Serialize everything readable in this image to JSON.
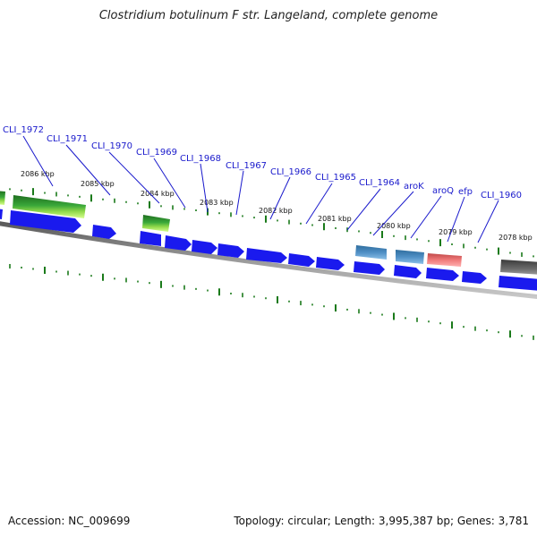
{
  "title": "Clostridium botulinum F str. Langeland, complete genome",
  "footer": {
    "accession": "Accession: NC_009699",
    "summary": "Topology: circular; Length: 3,995,387 bp; Genes: 3,781"
  },
  "colors": {
    "label": "#1a1acc",
    "cds": "#1a1aee",
    "rna_green": "#2a8a2a",
    "rna_lime": "#bff07a",
    "blue_steel": "#4682b4",
    "salmon": "#f08080",
    "dark_gray": "#555555",
    "backbone": "#777777",
    "ticks": "#1a7a1a"
  },
  "gene_labels": [
    "CLI_1972",
    "CLI_1971",
    "CLI_1970",
    "CLI_1969",
    "CLI_1968",
    "CLI_1967",
    "CLI_1966",
    "CLI_1965",
    "CLI_1964",
    "aroK",
    "aroQ",
    "efp",
    "CLI_1960"
  ],
  "kbp_labels": [
    "2086 kbp",
    "2085 kbp",
    "2084 kbp",
    "2083 kbp",
    "2082 kbp",
    "2081 kbp",
    "2080 kbp",
    "2079 kbp",
    "2078 kbp"
  ]
}
